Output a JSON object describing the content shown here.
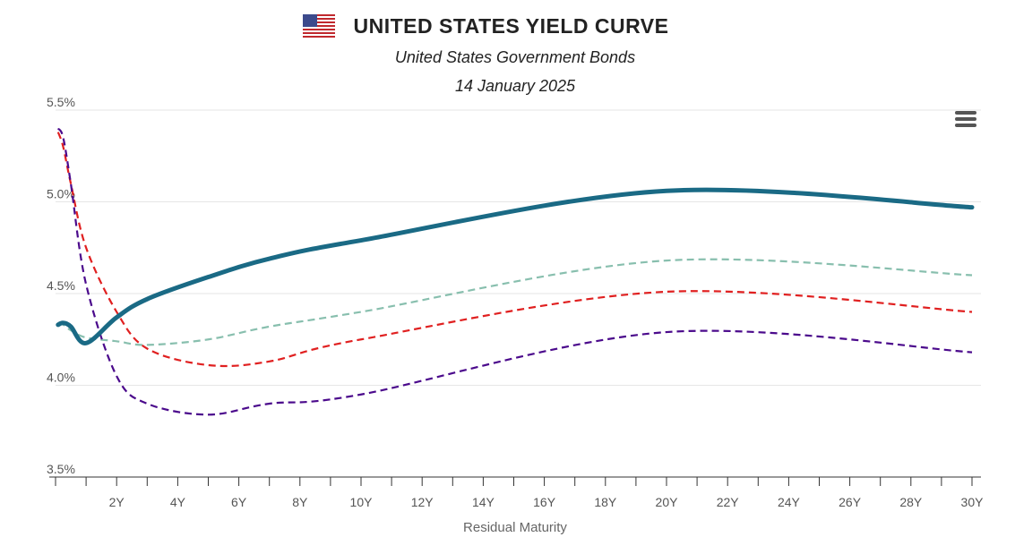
{
  "header": {
    "title": "UNITED STATES YIELD CURVE",
    "subtitle": "United States Government Bonds",
    "date": "14 January 2025",
    "flag_icon": "us-flag-icon"
  },
  "menu_icon": "hamburger-menu-icon",
  "chart_data": {
    "type": "line",
    "xlabel": "Residual Maturity",
    "ylabel": "",
    "xlim": [
      0,
      30
    ],
    "ylim": [
      3.5,
      5.5
    ],
    "x_ticks": [
      "2Y",
      "4Y",
      "6Y",
      "8Y",
      "10Y",
      "12Y",
      "14Y",
      "16Y",
      "18Y",
      "20Y",
      "22Y",
      "24Y",
      "26Y",
      "28Y",
      "30Y"
    ],
    "y_ticks": [
      "3.5%",
      "4.0%",
      "4.5%",
      "5.0%",
      "5.5%"
    ],
    "grid": true,
    "series": [
      {
        "color": "#1a6a85",
        "style": "solid",
        "x": [
          0.083,
          0.25,
          0.5,
          1,
          2,
          3,
          5,
          7,
          10,
          20,
          30
        ],
        "values": [
          4.33,
          4.34,
          4.32,
          4.23,
          4.37,
          4.47,
          4.59,
          4.69,
          4.79,
          5.06,
          4.97
        ]
      },
      {
        "color": "#88bfae",
        "style": "dashed",
        "x": [
          0.083,
          0.25,
          0.5,
          1,
          2,
          3,
          5,
          7,
          10,
          20,
          30
        ],
        "values": [
          4.34,
          4.33,
          4.3,
          4.26,
          4.24,
          4.22,
          4.25,
          4.32,
          4.4,
          4.68,
          4.6
        ]
      },
      {
        "color": "#e02020",
        "style": "dashed",
        "x": [
          0.083,
          0.25,
          0.5,
          1,
          2,
          3,
          5,
          7,
          10,
          20,
          30
        ],
        "values": [
          5.38,
          5.3,
          5.1,
          4.75,
          4.4,
          4.2,
          4.11,
          4.13,
          4.25,
          4.51,
          4.4
        ]
      },
      {
        "color": "#4b0a8c",
        "style": "dashed",
        "x": [
          0.083,
          0.25,
          0.5,
          1,
          2,
          3,
          5,
          7,
          10,
          20,
          30
        ],
        "values": [
          5.4,
          5.35,
          5.1,
          4.55,
          4.05,
          3.9,
          3.84,
          3.9,
          3.95,
          4.29,
          4.18
        ]
      }
    ]
  }
}
